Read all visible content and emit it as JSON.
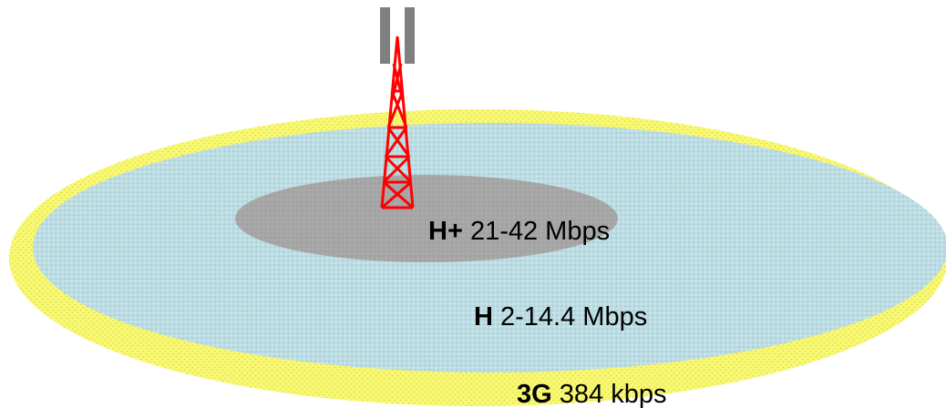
{
  "zones": [
    {
      "id": "hplus",
      "technology": "H+",
      "speed": "21-42 Mbps",
      "color": "#a6a6a6"
    },
    {
      "id": "h",
      "technology": "H",
      "speed": "2-14.4 Mbps",
      "color": "#bcdde3"
    },
    {
      "id": "3g",
      "technology": "3G",
      "speed": "384 kbps",
      "color": "#f8f872"
    }
  ],
  "tower": {
    "icon": "cell-tower-icon",
    "color": "#ff0000",
    "antenna_color": "#7f7f7f"
  }
}
